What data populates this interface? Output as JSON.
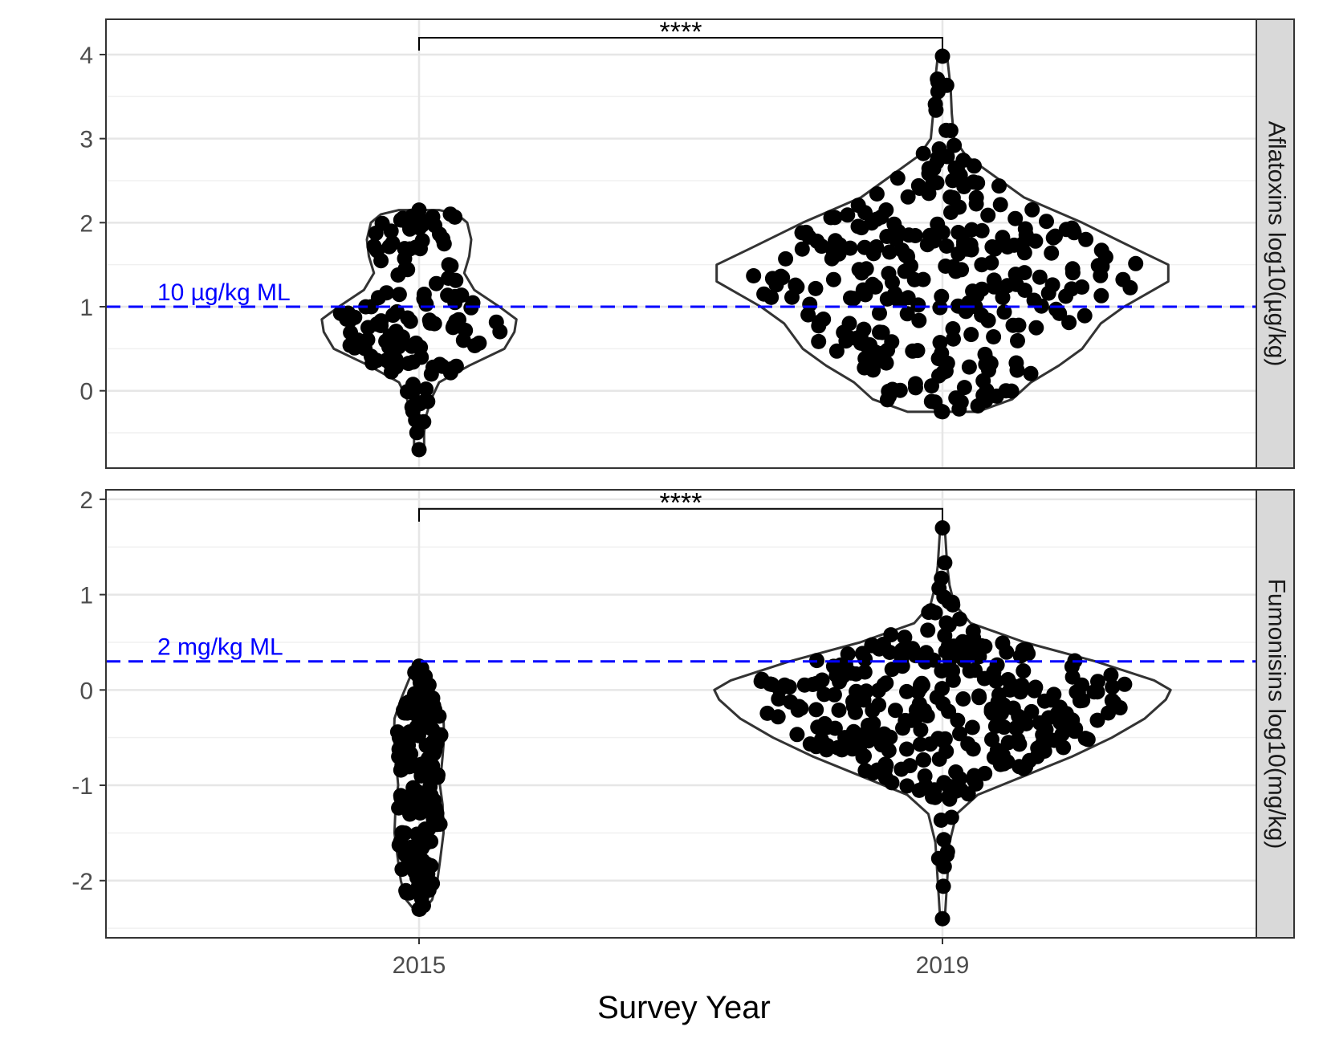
{
  "chart_data": {
    "type": "violin",
    "xlabel": "Survey Year",
    "categories": [
      "2015",
      "2019"
    ],
    "panels": [
      {
        "strip_label": "Aflatoxins log10(µg/kg)",
        "ylim": [
          -0.92,
          4.42
        ],
        "yticks": [
          0,
          1,
          2,
          3,
          4
        ],
        "ytick_labels": [
          "0",
          "1",
          "2",
          "3",
          "4"
        ],
        "reference_line": {
          "y": 1.0,
          "label": "10 µg/kg ML",
          "color": "#0000ff"
        },
        "significance": {
          "label": "****",
          "from": "2015",
          "to": "2019",
          "y": 4.2
        },
        "groups": [
          {
            "category": "2015",
            "n_points": 130,
            "min": -0.7,
            "max": 2.15,
            "violin": [
              [
                -0.7,
                0.05
              ],
              [
                -0.5,
                0.05
              ],
              [
                -0.3,
                0.07
              ],
              [
                -0.1,
                0.12
              ],
              [
                0.1,
                0.2
              ],
              [
                0.3,
                0.5
              ],
              [
                0.5,
                0.85
              ],
              [
                0.7,
                0.95
              ],
              [
                0.85,
                0.97
              ],
              [
                1.0,
                0.8
              ],
              [
                1.2,
                0.55
              ],
              [
                1.4,
                0.45
              ],
              [
                1.6,
                0.5
              ],
              [
                1.8,
                0.52
              ],
              [
                2.0,
                0.48
              ],
              [
                2.1,
                0.38
              ],
              [
                2.15,
                0.2
              ]
            ]
          },
          {
            "category": "2019",
            "n_points": 290,
            "min": -0.25,
            "max": 3.98,
            "violin": [
              [
                -0.25,
                0.15
              ],
              [
                -0.1,
                0.3
              ],
              [
                0.1,
                0.38
              ],
              [
                0.3,
                0.5
              ],
              [
                0.5,
                0.6
              ],
              [
                0.8,
                0.68
              ],
              [
                1.0,
                0.78
              ],
              [
                1.3,
                0.97
              ],
              [
                1.5,
                0.97
              ],
              [
                1.7,
                0.82
              ],
              [
                2.0,
                0.6
              ],
              [
                2.3,
                0.35
              ],
              [
                2.6,
                0.2
              ],
              [
                2.8,
                0.1
              ],
              [
                3.0,
                0.05
              ],
              [
                3.3,
                0.04
              ],
              [
                3.6,
                0.035
              ],
              [
                3.98,
                0.02
              ]
            ]
          }
        ]
      },
      {
        "strip_label": "Fumonisins log10(mg/kg)",
        "ylim": [
          -2.6,
          2.1
        ],
        "yticks": [
          -2,
          -1,
          0,
          1,
          2
        ],
        "ytick_labels": [
          "-2",
          "-1",
          "0",
          "1",
          "2"
        ],
        "reference_line": {
          "y": 0.3,
          "label": "2 mg/kg ML",
          "color": "#0000ff"
        },
        "significance": {
          "label": "****",
          "from": "2015",
          "to": "2019",
          "y": 1.9
        },
        "groups": [
          {
            "category": "2015",
            "n_points": 150,
            "min": -2.3,
            "max": 0.25,
            "violin": [
              [
                -2.3,
                0.1
              ],
              [
                -2.2,
                0.25
              ],
              [
                -2.0,
                0.35
              ],
              [
                -1.8,
                0.4
              ],
              [
                -1.5,
                0.47
              ],
              [
                -1.2,
                0.45
              ],
              [
                -1.0,
                0.4
              ],
              [
                -0.7,
                0.45
              ],
              [
                -0.5,
                0.48
              ],
              [
                -0.3,
                0.47
              ],
              [
                -0.1,
                0.35
              ],
              [
                0.1,
                0.2
              ],
              [
                0.25,
                0.08
              ]
            ]
          },
          {
            "category": "2019",
            "n_points": 310,
            "min": -2.4,
            "max": 1.7,
            "violin": [
              [
                -2.4,
                0.01
              ],
              [
                -2.0,
                0.02
              ],
              [
                -1.6,
                0.03
              ],
              [
                -1.3,
                0.06
              ],
              [
                -1.1,
                0.15
              ],
              [
                -0.9,
                0.35
              ],
              [
                -0.7,
                0.55
              ],
              [
                -0.5,
                0.72
              ],
              [
                -0.3,
                0.86
              ],
              [
                -0.1,
                0.95
              ],
              [
                0.0,
                0.97
              ],
              [
                0.1,
                0.9
              ],
              [
                0.3,
                0.65
              ],
              [
                0.5,
                0.35
              ],
              [
                0.7,
                0.12
              ],
              [
                0.9,
                0.05
              ],
              [
                1.1,
                0.03
              ],
              [
                1.3,
                0.02
              ],
              [
                1.5,
                0.015
              ],
              [
                1.7,
                0.01
              ]
            ]
          }
        ]
      }
    ],
    "grid": true,
    "theme": "bw",
    "colors": {
      "points": "#000000",
      "violin_outline": "#333333",
      "strip_fill": "#d9d9d9",
      "reference": "#0000ff"
    }
  }
}
